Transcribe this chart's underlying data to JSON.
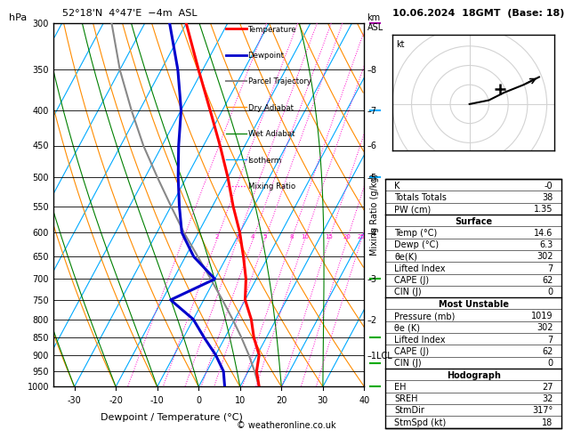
{
  "title_left": "52°18'N  4°47'E  −4m  ASL",
  "title_right": "10.06.2024  18GMT  (Base: 18)",
  "xlabel": "Dewpoint / Temperature (°C)",
  "pressure_levels": [
    300,
    350,
    400,
    450,
    500,
    550,
    600,
    650,
    700,
    750,
    800,
    850,
    900,
    950,
    1000
  ],
  "xmin": -35,
  "xmax": 40,
  "pmin": 300,
  "pmax": 1000,
  "temp_color": "#ff0000",
  "dewp_color": "#0000cc",
  "parcel_color": "#888888",
  "dry_adiabat_color": "#ff8c00",
  "wet_adiabat_color": "#008000",
  "isotherm_color": "#00aaff",
  "mixing_ratio_color": "#ff00cc",
  "legend_items": [
    "Temperature",
    "Dewpoint",
    "Parcel Trajectory",
    "Dry Adiabat",
    "Wet Adiabat",
    "Isotherm",
    "Mixing Ratio"
  ],
  "legend_colors": [
    "#ff0000",
    "#0000cc",
    "#888888",
    "#ff8c00",
    "#008000",
    "#00aaff",
    "#ff00cc"
  ],
  "legend_styles": [
    "solid",
    "solid",
    "solid",
    "solid",
    "solid",
    "solid",
    "dotted"
  ],
  "legend_widths": [
    2.0,
    2.0,
    1.5,
    0.9,
    0.9,
    0.9,
    0.9
  ],
  "mixing_ratio_values": [
    1,
    2,
    3,
    4,
    5,
    8,
    10,
    15,
    20,
    25
  ],
  "km_labels": {
    "8": 350,
    "7": 400,
    "6": 450,
    "5": 500,
    "4": 600,
    "3": 700,
    "2": 800,
    "1LCL": 900
  },
  "temperature_profile_p": [
    1000,
    950,
    900,
    850,
    800,
    750,
    700,
    650,
    600,
    550,
    500,
    450,
    400,
    350,
    300
  ],
  "temperature_profile_t": [
    14.6,
    12.0,
    10.5,
    7.0,
    4.0,
    0.0,
    -2.5,
    -6.0,
    -10.0,
    -15.0,
    -20.0,
    -26.0,
    -33.0,
    -41.0,
    -50.0
  ],
  "dewpoint_profile_p": [
    1000,
    950,
    900,
    850,
    800,
    750,
    700,
    650,
    600,
    550,
    500,
    450,
    400,
    350,
    300
  ],
  "dewpoint_profile_t": [
    6.3,
    4.0,
    0.0,
    -5.0,
    -10.0,
    -18.0,
    -10.0,
    -18.0,
    -24.0,
    -28.0,
    -32.0,
    -36.0,
    -40.0,
    -46.0,
    -54.0
  ],
  "parcel_profile_p": [
    1000,
    950,
    900,
    850,
    800,
    750,
    700,
    650,
    600,
    550,
    500,
    450,
    400,
    350,
    300
  ],
  "parcel_profile_t": [
    14.6,
    11.5,
    8.0,
    4.0,
    -0.5,
    -5.5,
    -11.0,
    -17.0,
    -23.5,
    -30.0,
    -37.0,
    -44.5,
    -52.0,
    -60.0,
    -68.0
  ],
  "table_rows": [
    [
      "K",
      "-0"
    ],
    [
      "Totals Totals",
      "38"
    ],
    [
      "PW (cm)",
      "1.35"
    ],
    [
      "Surface",
      ""
    ],
    [
      "Temp (°C)",
      "14.6"
    ],
    [
      "Dewp (°C)",
      "6.3"
    ],
    [
      "θe(K)",
      "302"
    ],
    [
      "Lifted Index",
      "7"
    ],
    [
      "CAPE (J)",
      "62"
    ],
    [
      "CIN (J)",
      "0"
    ],
    [
      "Most Unstable",
      ""
    ],
    [
      "Pressure (mb)",
      "1019"
    ],
    [
      "θe (K)",
      "302"
    ],
    [
      "Lifted Index",
      "7"
    ],
    [
      "CAPE (J)",
      "62"
    ],
    [
      "CIN (J)",
      "0"
    ],
    [
      "Hodograph",
      ""
    ],
    [
      "EH",
      "27"
    ],
    [
      "SREH",
      "32"
    ],
    [
      "StmDir",
      "317°"
    ],
    [
      "StmSpd (kt)",
      "18"
    ]
  ],
  "section_rows": [
    3,
    10,
    16
  ],
  "copyright": "© weatheronline.co.uk",
  "skew_factor": 47.0,
  "hodo_u": [
    0,
    5,
    9,
    14,
    18
  ],
  "hodo_v": [
    0,
    1,
    3,
    5,
    7
  ],
  "barb_color_purple": "#aa00aa",
  "barb_color_green": "#00aa00",
  "barb_color_cyan": "#00aaff"
}
